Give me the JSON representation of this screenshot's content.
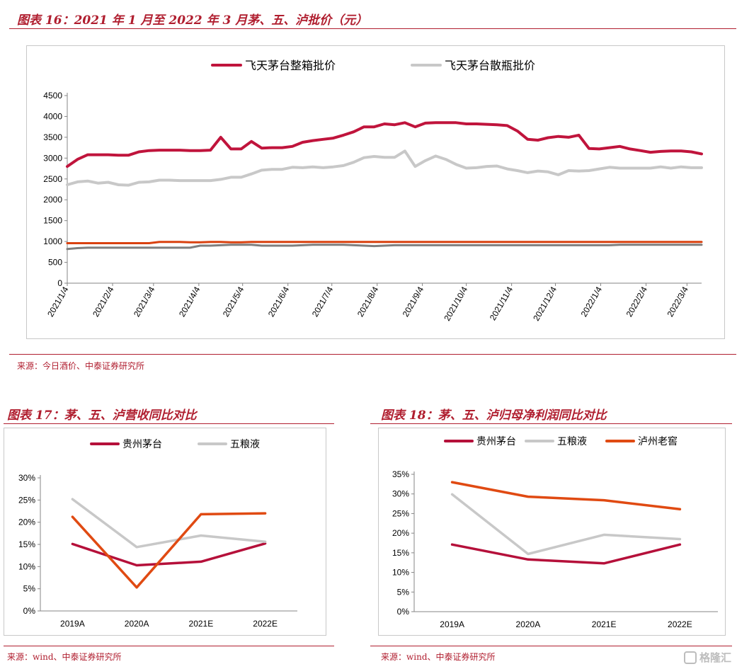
{
  "fig16": {
    "title": "图表 16：2021 年 1 月至 2022 年 3 月茅、五、泸批价（元）",
    "source": "来源：今日酒价、中泰证券研究所"
  },
  "fig17": {
    "title": "图表 17：茅、五、泸营收同比对比",
    "source": "来源：wind、中泰证券研究所"
  },
  "fig18": {
    "title": "图表 18：茅、五、泸归母净利润同比对比",
    "source": "来源：wind、中泰证券研究所"
  },
  "watermark": {
    "text": "格隆汇",
    "icon": "gelonghui-logo-icon"
  },
  "chart_data": [
    {
      "id": "fig16",
      "type": "line",
      "ylim": [
        0,
        4500
      ],
      "yticks": [
        0,
        500,
        1000,
        1500,
        2000,
        2500,
        3000,
        3500,
        4000,
        4500
      ],
      "x_tick_labels": [
        "2021/1/4",
        "2021/2/4",
        "2021/3/4",
        "2021/4/4",
        "2021/5/4",
        "2021/6/4",
        "2021/7/4",
        "2021/8/4",
        "2021/9/4",
        "2021/10/4",
        "2021/11/4",
        "2021/12/4",
        "2022/1/4",
        "2022/2/4",
        "2022/3/4"
      ],
      "x_tick_positions": [
        0,
        4.43,
        8.43,
        12.86,
        17.14,
        21.57,
        25.86,
        30.29,
        34.71,
        39,
        43.43,
        47.71,
        52.14,
        56.57,
        60.57
      ],
      "grid": false,
      "legend": "top",
      "series": [
        {
          "name": "飞天茅台整箱批价",
          "color": "#c0143c",
          "width": 4,
          "values": [
            2800,
            2970,
            3080,
            3080,
            3080,
            3070,
            3070,
            3150,
            3180,
            3190,
            3190,
            3190,
            3180,
            3180,
            3190,
            3500,
            3220,
            3220,
            3400,
            3240,
            3250,
            3250,
            3280,
            3380,
            3420,
            3450,
            3480,
            3550,
            3630,
            3750,
            3750,
            3820,
            3800,
            3850,
            3750,
            3840,
            3850,
            3850,
            3850,
            3820,
            3820,
            3810,
            3800,
            3780,
            3650,
            3450,
            3430,
            3490,
            3520,
            3500,
            3550,
            3230,
            3220,
            3250,
            3280,
            3220,
            3180,
            3140,
            3160,
            3170,
            3170,
            3150,
            3100
          ]
        },
        {
          "name": "飞天茅台散瓶批价",
          "color": "#c8c8c8",
          "width": 4,
          "values": [
            2360,
            2430,
            2450,
            2400,
            2420,
            2360,
            2350,
            2420,
            2430,
            2470,
            2470,
            2460,
            2460,
            2460,
            2460,
            2490,
            2540,
            2540,
            2620,
            2710,
            2730,
            2730,
            2780,
            2770,
            2790,
            2770,
            2790,
            2820,
            2900,
            3010,
            3040,
            3020,
            3020,
            3170,
            2800,
            2940,
            3050,
            2970,
            2850,
            2760,
            2770,
            2800,
            2810,
            2740,
            2700,
            2650,
            2690,
            2670,
            2600,
            2700,
            2690,
            2700,
            2740,
            2780,
            2760,
            2760,
            2760,
            2760,
            2790,
            2760,
            2790,
            2770,
            2770
          ]
        },
        {
          "name": "",
          "color": "#d9410f",
          "width": 3,
          "values": [
            960,
            960,
            960,
            960,
            960,
            960,
            960,
            960,
            960,
            990,
            990,
            990,
            980,
            980,
            990,
            990,
            980,
            980,
            990,
            990,
            990,
            990,
            990,
            990,
            990,
            990,
            990,
            990,
            990,
            990,
            990,
            990,
            990,
            990,
            990,
            990,
            990,
            990,
            990,
            990,
            990,
            990,
            990,
            990,
            990,
            990,
            990,
            990,
            990,
            990,
            990,
            990,
            990,
            990,
            990,
            990,
            990,
            990,
            990,
            990,
            990,
            990,
            990
          ]
        },
        {
          "name": "",
          "color": "#7f7f7f",
          "width": 3,
          "values": [
            820,
            840,
            850,
            850,
            850,
            850,
            850,
            850,
            850,
            850,
            850,
            850,
            850,
            900,
            900,
            910,
            920,
            920,
            920,
            900,
            900,
            900,
            900,
            910,
            920,
            920,
            920,
            920,
            910,
            900,
            890,
            900,
            910,
            910,
            910,
            910,
            910,
            910,
            910,
            910,
            910,
            910,
            910,
            910,
            910,
            910,
            910,
            910,
            910,
            910,
            910,
            910,
            910,
            910,
            920,
            920,
            920,
            920,
            920,
            920,
            920,
            920,
            920
          ]
        }
      ]
    },
    {
      "id": "fig17",
      "type": "line",
      "categories": [
        "2019A",
        "2020A",
        "2021E",
        "2022E"
      ],
      "ylim": [
        0,
        30
      ],
      "yticks": [
        0,
        5,
        10,
        15,
        20,
        25,
        30
      ],
      "tick_format": "%",
      "grid": false,
      "legend": "top",
      "series": [
        {
          "name": "贵州茅台",
          "color": "#b5103a",
          "values": [
            15.1,
            10.3,
            11.1,
            15.2
          ]
        },
        {
          "name": "五粮液",
          "color": "#c8c8c8",
          "values": [
            25.2,
            14.4,
            17.0,
            15.6
          ]
        },
        {
          "name": "",
          "color": "#e04a12",
          "values": [
            21.2,
            5.3,
            21.8,
            22.0
          ]
        }
      ]
    },
    {
      "id": "fig18",
      "type": "line",
      "categories": [
        "2019A",
        "2020A",
        "2021E",
        "2022E"
      ],
      "ylim": [
        0,
        35
      ],
      "yticks": [
        0,
        5,
        10,
        15,
        20,
        25,
        30,
        35
      ],
      "tick_format": "%",
      "grid": false,
      "legend": "top",
      "series": [
        {
          "name": "贵州茅台",
          "color": "#b5103a",
          "values": [
            17.1,
            13.3,
            12.3,
            17.1
          ]
        },
        {
          "name": "五粮液",
          "color": "#c8c8c8",
          "values": [
            29.9,
            14.7,
            19.6,
            18.5
          ]
        },
        {
          "name": "泸州老窖",
          "color": "#e04a12",
          "values": [
            33.0,
            29.3,
            28.4,
            26.1
          ]
        }
      ]
    }
  ]
}
